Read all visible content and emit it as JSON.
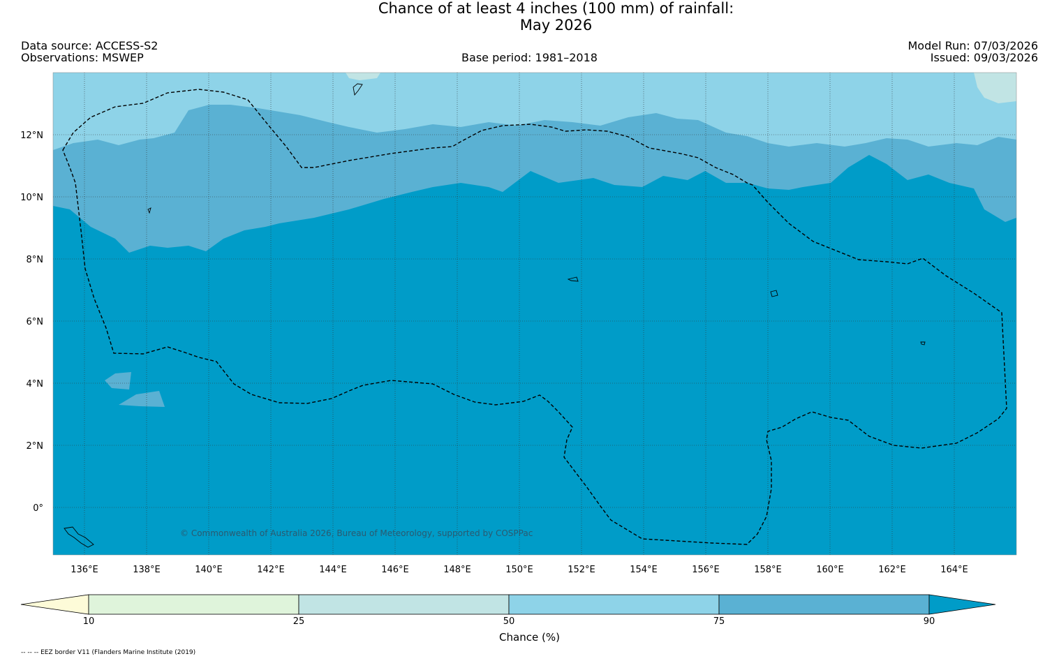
{
  "title": {
    "line1": "Chance of at least 4 inches (100  mm) of rainfall:",
    "line2": "May 2026"
  },
  "header": {
    "data_source": "Data source: ACCESS-S2",
    "observations": "Observations: MSWEP",
    "base_period": "Base period: 1981–2018",
    "model_run": "Model Run: 07/03/2026",
    "issued": "Issued: 09/03/2026"
  },
  "map": {
    "region": "Federated States of Micronesia and surrounding western Pacific",
    "lon_range": [
      135,
      166
    ],
    "lat_range": [
      -1.5,
      14.0
    ],
    "lon_ticks": [
      "136°E",
      "138°E",
      "140°E",
      "142°E",
      "144°E",
      "146°E",
      "148°E",
      "150°E",
      "152°E",
      "154°E",
      "156°E",
      "158°E",
      "160°E",
      "162°E",
      "164°E"
    ],
    "lat_ticks": [
      "12°N",
      "10°N",
      "8°N",
      "6°N",
      "4°N",
      "2°N",
      "0°"
    ],
    "copyright": "© Commonwealth of Australia 2026, Bureau of Meteorology, supported by COSPPac",
    "bands": {
      "top_band": "50–75%",
      "middle_band": "75–90%",
      "main_area": "90%+"
    }
  },
  "colorbar": {
    "title": "Chance (%)",
    "ticks": [
      "10",
      "25",
      "50",
      "75",
      "90"
    ],
    "colors": {
      "below_10": "#fdfbd8",
      "10_25": "#dff4db",
      "25_50": "#c1e4e4",
      "50_75": "#8ed3e8",
      "75_90": "#5ab1d3",
      "above_90": "#009cc8"
    }
  },
  "footnote": "-- -- -- EEZ border V11 (Flanders Marine Institute (2019)"
}
